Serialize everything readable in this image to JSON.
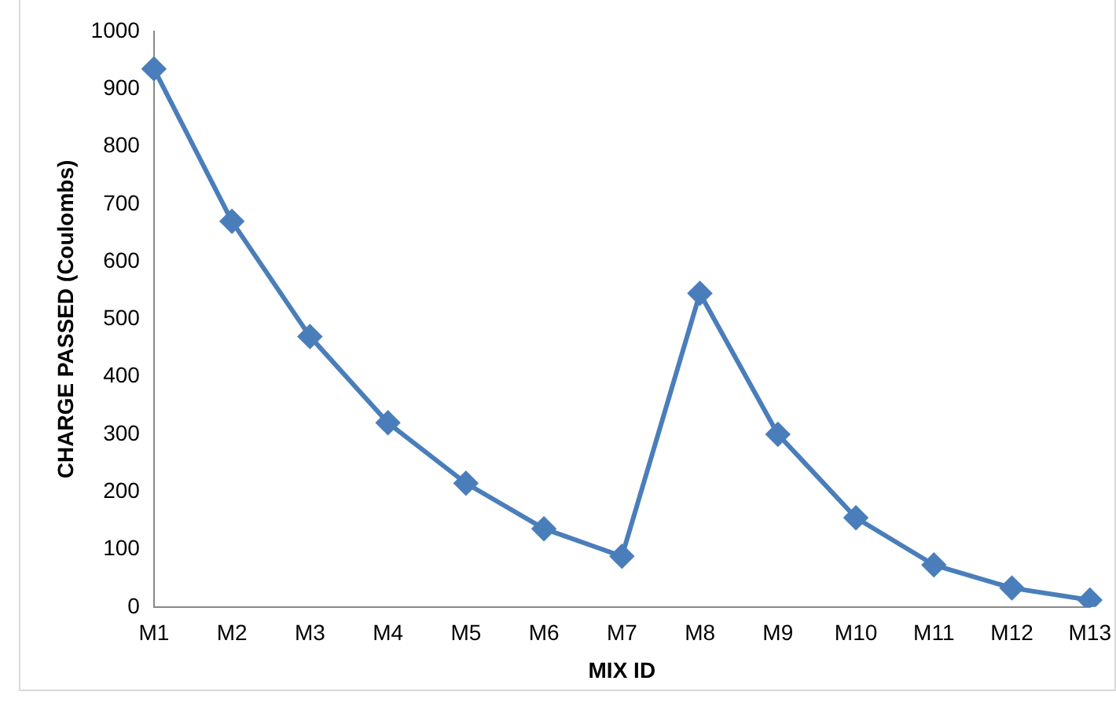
{
  "chart_data": {
    "type": "line",
    "xlabel": "MIX ID",
    "ylabel": "CHARGE PASSED (Coulombs)",
    "categories": [
      "M1",
      "M2",
      "M3",
      "M4",
      "M5",
      "M6",
      "M7",
      "M8",
      "M9",
      "M10",
      "M11",
      "M12",
      "M13"
    ],
    "series": [
      {
        "color": "#4a7ebb",
        "values": [
          935,
          670,
          470,
          320,
          215,
          136,
          88,
          545,
          300,
          155,
          73,
          33,
          12
        ]
      }
    ],
    "ylim": [
      0,
      1000
    ],
    "yticks": [
      0,
      100,
      200,
      300,
      400,
      500,
      600,
      700,
      800,
      900,
      1000
    ],
    "grid": false,
    "legend": false,
    "marker": "diamond",
    "line_style": "solid"
  }
}
